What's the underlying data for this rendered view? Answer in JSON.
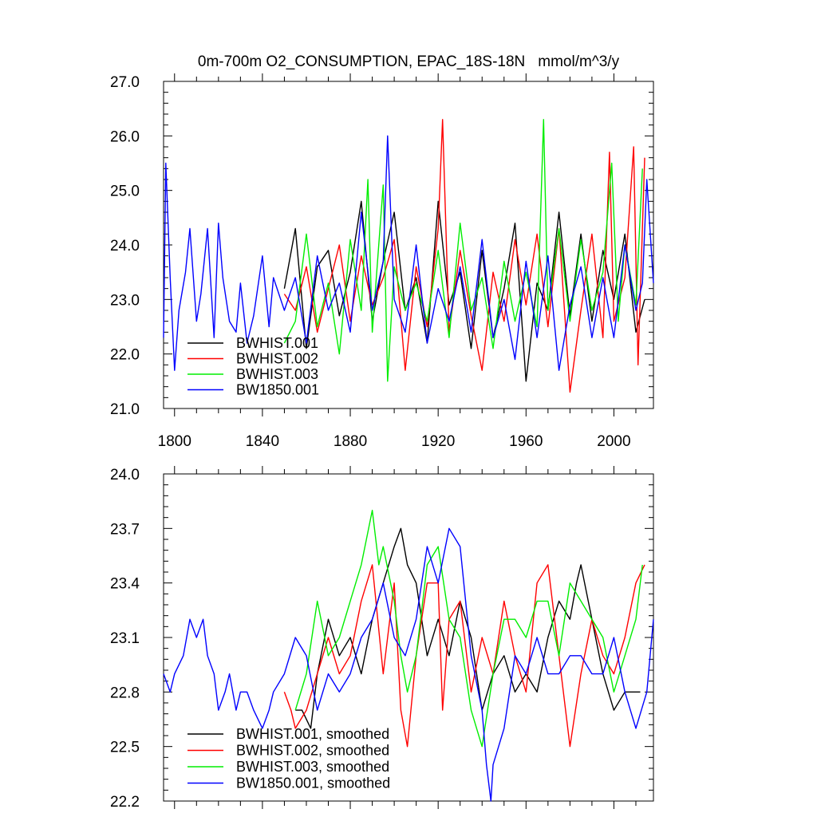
{
  "chart_data": [
    {
      "type": "line",
      "title": "0m-700m O2_CONSUMPTION, EPAC_18S-18N",
      "units": "mmol/m^3/y",
      "xlabel": "",
      "ylabel": "",
      "xlim": [
        1795,
        2018
      ],
      "ylim": [
        21.0,
        27.0
      ],
      "x_ticks": [
        1800,
        1840,
        1880,
        1920,
        1960,
        2000
      ],
      "x_tick_labels": [
        "1800",
        "1840",
        "1880",
        "1920",
        "1960",
        "2000"
      ],
      "y_ticks": [
        21.0,
        22.0,
        23.0,
        24.0,
        25.0,
        26.0,
        27.0
      ],
      "y_tick_labels": [
        "21.0",
        "22.0",
        "23.0",
        "24.0",
        "25.0",
        "26.0",
        "27.0"
      ],
      "legend_position": "bottom-left",
      "series": [
        {
          "name": "BWHIST.001",
          "color": "#000000",
          "x": [
            1850,
            1855,
            1860,
            1865,
            1870,
            1875,
            1880,
            1885,
            1890,
            1895,
            1900,
            1905,
            1910,
            1915,
            1920,
            1925,
            1930,
            1935,
            1940,
            1945,
            1950,
            1955,
            1960,
            1965,
            1970,
            1975,
            1980,
            1985,
            1990,
            1995,
            2000,
            2005,
            2010,
            2014
          ],
          "values": [
            23.2,
            24.3,
            22.1,
            23.6,
            23.9,
            22.7,
            23.5,
            24.8,
            22.6,
            23.7,
            24.6,
            22.8,
            23.4,
            22.2,
            24.8,
            22.9,
            23.5,
            22.1,
            23.9,
            22.3,
            23.2,
            24.4,
            21.5,
            23.3,
            22.8,
            24.6,
            22.7,
            24.2,
            22.6,
            23.9,
            23.0,
            24.2,
            22.4,
            23.0
          ]
        },
        {
          "name": "BWHIST.002",
          "color": "#ff0000",
          "x": [
            1850,
            1855,
            1860,
            1865,
            1870,
            1875,
            1880,
            1885,
            1890,
            1895,
            1900,
            1905,
            1910,
            1915,
            1920,
            1922,
            1925,
            1930,
            1935,
            1940,
            1945,
            1950,
            1955,
            1960,
            1965,
            1970,
            1975,
            1980,
            1985,
            1990,
            1995,
            1998,
            2000,
            2005,
            2009,
            2011,
            2014
          ],
          "values": [
            23.1,
            22.8,
            23.6,
            22.4,
            23.2,
            24.0,
            22.6,
            23.8,
            22.9,
            23.4,
            24.1,
            21.7,
            23.6,
            22.5,
            24.3,
            26.3,
            22.4,
            23.9,
            22.7,
            21.7,
            23.5,
            22.6,
            24.1,
            22.9,
            24.2,
            22.5,
            24.3,
            21.3,
            22.8,
            24.2,
            22.3,
            25.7,
            22.6,
            23.4,
            25.8,
            21.8,
            25.6
          ]
        },
        {
          "name": "BWHIST.003",
          "color": "#00ee00",
          "x": [
            1850,
            1855,
            1860,
            1865,
            1870,
            1875,
            1880,
            1885,
            1888,
            1890,
            1895,
            1897,
            1900,
            1905,
            1910,
            1915,
            1920,
            1925,
            1930,
            1935,
            1940,
            1945,
            1950,
            1955,
            1960,
            1965,
            1968,
            1970,
            1975,
            1980,
            1985,
            1990,
            1995,
            1999,
            2002,
            2005,
            2010,
            2013
          ],
          "values": [
            22.2,
            22.6,
            24.2,
            22.5,
            23.3,
            22.0,
            24.1,
            22.8,
            25.2,
            22.4,
            25.1,
            21.5,
            23.6,
            22.8,
            23.3,
            22.6,
            23.9,
            22.3,
            24.4,
            22.8,
            23.4,
            22.1,
            23.7,
            22.6,
            23.5,
            22.5,
            26.3,
            22.8,
            24.3,
            22.6,
            24.1,
            22.8,
            23.5,
            25.5,
            22.6,
            24.0,
            22.9,
            25.4
          ]
        },
        {
          "name": "BW1850.001",
          "color": "#0000ff",
          "x": [
            1795,
            1796,
            1798,
            1800,
            1802,
            1805,
            1807,
            1810,
            1812,
            1815,
            1818,
            1820,
            1822,
            1825,
            1828,
            1830,
            1833,
            1836,
            1840,
            1843,
            1845,
            1850,
            1855,
            1860,
            1865,
            1870,
            1875,
            1880,
            1885,
            1890,
            1895,
            1897,
            1900,
            1905,
            1910,
            1915,
            1920,
            1925,
            1930,
            1935,
            1940,
            1945,
            1950,
            1955,
            1960,
            1965,
            1970,
            1975,
            1980,
            1985,
            1990,
            1995,
            2000,
            2005,
            2010,
            2013,
            2015,
            2018
          ],
          "values": [
            22.3,
            25.5,
            23.4,
            21.7,
            22.8,
            23.5,
            24.3,
            22.6,
            23.1,
            24.3,
            22.3,
            24.4,
            23.4,
            22.6,
            22.4,
            23.3,
            22.2,
            22.7,
            23.8,
            22.5,
            23.4,
            22.8,
            23.4,
            22.2,
            23.8,
            22.8,
            23.3,
            22.4,
            24.6,
            22.8,
            23.7,
            26.0,
            23.0,
            22.4,
            24.0,
            22.2,
            23.2,
            22.6,
            23.6,
            22.4,
            24.1,
            22.3,
            23.0,
            21.9,
            23.7,
            22.3,
            23.8,
            21.7,
            22.9,
            23.6,
            22.3,
            23.4,
            22.3,
            24.0,
            22.8,
            23.3,
            25.2,
            23.3
          ]
        }
      ]
    },
    {
      "type": "line",
      "title": "",
      "xlabel": "",
      "ylabel": "",
      "xlim": [
        1795,
        2018
      ],
      "ylim": [
        22.2,
        24.0
      ],
      "x_ticks": [
        1800,
        1840,
        1880,
        1920,
        1960,
        2000
      ],
      "y_ticks": [
        22.2,
        22.5,
        22.8,
        23.1,
        23.4,
        23.7,
        24.0
      ],
      "y_tick_labels": [
        "22.2",
        "22.5",
        "22.8",
        "23.1",
        "23.4",
        "23.7",
        "24.0"
      ],
      "legend_position": "bottom-left",
      "series": [
        {
          "name": "BWHIST.001, smoothed",
          "color": "#000000",
          "x": [
            1855,
            1858,
            1862,
            1865,
            1870,
            1875,
            1880,
            1885,
            1890,
            1895,
            1900,
            1903,
            1906,
            1910,
            1915,
            1920,
            1925,
            1930,
            1935,
            1940,
            1945,
            1950,
            1955,
            1960,
            1965,
            1970,
            1975,
            1980,
            1983,
            1985,
            1990,
            1995,
            2000,
            2005,
            2010,
            2012
          ],
          "values": [
            22.7,
            22.7,
            22.6,
            22.9,
            23.2,
            23.0,
            23.1,
            22.9,
            23.2,
            23.4,
            23.6,
            23.7,
            23.5,
            23.4,
            23.0,
            23.2,
            23.0,
            23.3,
            23.1,
            22.7,
            22.9,
            23.0,
            22.8,
            22.9,
            22.8,
            23.1,
            23.3,
            23.2,
            23.4,
            23.5,
            23.2,
            22.9,
            22.7,
            22.8,
            22.8,
            22.8
          ]
        },
        {
          "name": "BWHIST.002, smoothed",
          "color": "#ff0000",
          "x": [
            1850,
            1853,
            1855,
            1860,
            1865,
            1870,
            1875,
            1880,
            1885,
            1890,
            1895,
            1900,
            1903,
            1906,
            1910,
            1915,
            1920,
            1922,
            1925,
            1930,
            1935,
            1940,
            1945,
            1950,
            1955,
            1960,
            1965,
            1970,
            1975,
            1980,
            1985,
            1990,
            1995,
            2000,
            2005,
            2010,
            2014
          ],
          "values": [
            22.8,
            22.7,
            22.6,
            22.7,
            22.9,
            23.1,
            22.9,
            23.0,
            23.3,
            23.5,
            22.9,
            23.4,
            22.7,
            22.5,
            23.0,
            23.4,
            23.4,
            22.7,
            23.2,
            23.3,
            22.8,
            23.1,
            22.9,
            23.3,
            23.0,
            22.8,
            23.4,
            23.5,
            23.0,
            22.5,
            22.9,
            23.2,
            23.0,
            22.9,
            23.1,
            23.4,
            23.5
          ]
        },
        {
          "name": "BWHIST.003, smoothed",
          "color": "#00ee00",
          "x": [
            1855,
            1860,
            1865,
            1870,
            1875,
            1880,
            1885,
            1890,
            1893,
            1895,
            1900,
            1903,
            1906,
            1910,
            1915,
            1920,
            1925,
            1930,
            1935,
            1940,
            1945,
            1950,
            1955,
            1960,
            1965,
            1970,
            1975,
            1980,
            1985,
            1990,
            1995,
            2000,
            2005,
            2010,
            2013
          ],
          "values": [
            22.7,
            22.9,
            23.3,
            23.0,
            23.1,
            23.3,
            23.5,
            23.8,
            23.5,
            23.6,
            23.3,
            23.0,
            22.8,
            23.0,
            23.5,
            23.6,
            23.2,
            23.1,
            22.7,
            22.5,
            22.9,
            23.2,
            23.2,
            23.1,
            23.3,
            23.3,
            23.0,
            23.4,
            23.3,
            23.2,
            23.1,
            22.8,
            23.0,
            23.2,
            23.5
          ]
        },
        {
          "name": "BW1850.001, smoothed",
          "color": "#0000ff",
          "x": [
            1795,
            1798,
            1800,
            1804,
            1807,
            1810,
            1813,
            1815,
            1818,
            1820,
            1823,
            1825,
            1828,
            1830,
            1833,
            1836,
            1840,
            1843,
            1845,
            1850,
            1855,
            1860,
            1865,
            1870,
            1875,
            1880,
            1885,
            1890,
            1895,
            1900,
            1905,
            1910,
            1915,
            1920,
            1925,
            1930,
            1935,
            1940,
            1942,
            1944,
            1945,
            1950,
            1955,
            1960,
            1965,
            1970,
            1975,
            1980,
            1985,
            1990,
            1995,
            2000,
            2005,
            2010,
            2015,
            2018
          ],
          "values": [
            22.9,
            22.8,
            22.9,
            23.0,
            23.2,
            23.1,
            23.2,
            23.0,
            22.9,
            22.7,
            22.8,
            22.9,
            22.7,
            22.8,
            22.8,
            22.7,
            22.6,
            22.7,
            22.8,
            22.9,
            23.1,
            23.0,
            22.7,
            22.9,
            22.8,
            22.9,
            23.1,
            23.2,
            23.4,
            23.1,
            23.0,
            23.2,
            23.6,
            23.4,
            23.7,
            23.6,
            23.0,
            22.7,
            22.4,
            22.2,
            22.4,
            22.6,
            23.0,
            22.9,
            23.1,
            22.9,
            22.9,
            23.0,
            23.0,
            22.9,
            22.9,
            23.1,
            22.8,
            22.6,
            22.8,
            23.2
          ]
        }
      ]
    }
  ]
}
